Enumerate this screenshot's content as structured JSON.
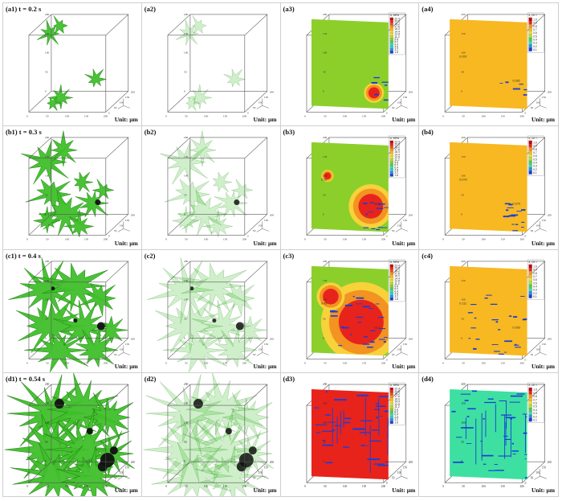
{
  "panels": [
    {
      "id": "a1",
      "label": "(a1) t = 0.2 s",
      "kind": "solid",
      "stage": 1,
      "unit": "Unit: μm"
    },
    {
      "id": "a2",
      "label": "(a2)",
      "kind": "transparent",
      "stage": 1,
      "unit": "Unit: μm"
    },
    {
      "id": "a3",
      "label": "(a3)",
      "kind": "stress",
      "stage": 1,
      "unit": "Unit: μm",
      "fill": "#8ccf2a",
      "annotations": []
    },
    {
      "id": "a4",
      "label": "(a4)",
      "kind": "strain",
      "stage": 1,
      "unit": "Unit: μm",
      "fill": "#f7b821",
      "annotations": [
        "0.057",
        "0.062"
      ]
    },
    {
      "id": "b1",
      "label": "(b1) t = 0.3 s",
      "kind": "solid",
      "stage": 2,
      "unit": "Unit: μm"
    },
    {
      "id": "b2",
      "label": "(b2)",
      "kind": "transparent",
      "stage": 2,
      "unit": "Unit: μm"
    },
    {
      "id": "b3",
      "label": "(b3)",
      "kind": "stress",
      "stage": 2,
      "unit": "Unit: μm",
      "fill": "#8ccf2a",
      "annotations": [
        "9.20",
        "11.11"
      ]
    },
    {
      "id": "b4",
      "label": "(b4)",
      "kind": "strain",
      "stage": 2,
      "unit": "Unit: μm",
      "fill": "#f7b821",
      "annotations": [
        "0.070",
        "0.070"
      ]
    },
    {
      "id": "c1",
      "label": "(c1) t = 0.4 s",
      "kind": "solid",
      "stage": 3,
      "unit": "Unit: μm"
    },
    {
      "id": "c2",
      "label": "(c2)",
      "kind": "transparent",
      "stage": 3,
      "unit": "Unit: μm"
    },
    {
      "id": "c3",
      "label": "(c3)",
      "kind": "stress",
      "stage": 3,
      "unit": "Unit: μm",
      "fill": "#8ccf2a",
      "annotations": [
        "9.43",
        "13.2"
      ]
    },
    {
      "id": "c4",
      "label": "(c4)",
      "kind": "strain",
      "stage": 3,
      "unit": "Unit: μm",
      "fill": "#f7b821",
      "annotations": [
        "0.111",
        "0.093"
      ]
    },
    {
      "id": "d1",
      "label": "(d1) t = 0.54 s",
      "kind": "solid",
      "stage": 4,
      "unit": "Unit: μm"
    },
    {
      "id": "d2",
      "label": "(d2)",
      "kind": "transparent",
      "stage": 4,
      "unit": "Unit: μm"
    },
    {
      "id": "d3",
      "label": "(d3)",
      "kind": "stress",
      "stage": 4,
      "unit": "Unit: μm",
      "fill": "#e8231c",
      "annotations": []
    },
    {
      "id": "d4",
      "label": "(d4)",
      "kind": "strain",
      "stage": 4,
      "unit": "Unit: μm",
      "fill": "#3de0a0",
      "annotations": []
    }
  ],
  "axis_ticks": [
    "0",
    "50",
    "100",
    "150",
    "200"
  ],
  "stress_legend": {
    "title": "σ, MPa",
    "values": [
      "22.4",
      "20.8",
      "19.2",
      "17.6",
      "16.0",
      "14.4",
      "12.8",
      "11.2",
      "9.6",
      "8.0",
      "6.4",
      "4.8",
      "3.2",
      "1.6"
    ]
  },
  "strain_legend": {
    "title": "ε, 10⁻³",
    "values": [
      "1.0",
      "0.9",
      "0.8",
      "0.7",
      "0.6",
      "0.5",
      "0.4",
      "0.3",
      "0.2",
      "0.1"
    ]
  },
  "colors": {
    "grain": "#3fbf2a",
    "grain_dark": "#1e7a12",
    "pore": "#111111",
    "box_line": "#555555",
    "pore_blue": "#1a3ed6"
  }
}
